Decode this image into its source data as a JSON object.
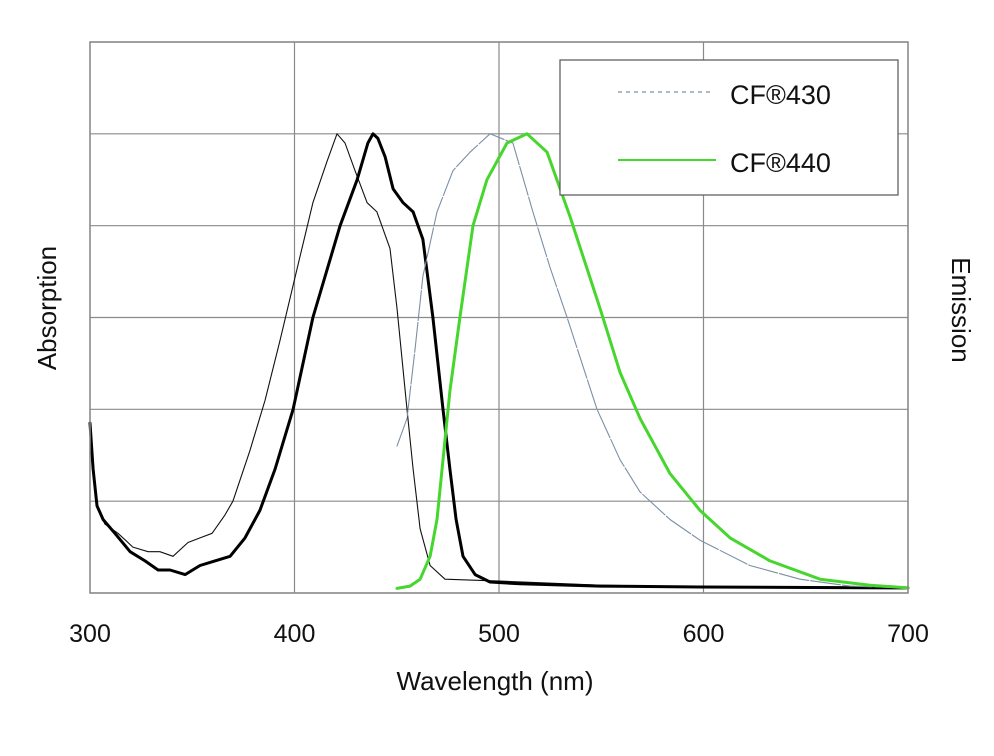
{
  "chart_data": {
    "type": "line",
    "title": "",
    "xlabel": "Wavelength (nm)",
    "ylabel": "Absorption",
    "ylabel_right": "Emission",
    "xlim": [
      300,
      700
    ],
    "ylim": [
      0,
      1.2
    ],
    "xticks": [
      300,
      400,
      500,
      600,
      700
    ],
    "xtick_labels": [
      "300",
      "400",
      "500",
      "600",
      "700"
    ],
    "yticks": [
      0,
      0.2,
      0.4,
      0.6,
      0.8,
      1.0,
      1.2
    ],
    "grid": true,
    "legend": {
      "placement": "top-right",
      "entries": [
        "CF®430",
        "CF®440"
      ]
    },
    "colors": {
      "cf430_absorption": "#111111",
      "cf440_absorption": "#000000",
      "cf430_emission": "#7b8fa5",
      "cf440_emission": "#46d62e",
      "grid": "#8a8a8a"
    },
    "series": [
      {
        "name": "CF®430",
        "kind": "absorption",
        "style": "thin-solid",
        "x": [
          300,
          303.4,
          307.3,
          313.7,
          321.0,
          328.4,
          334.2,
          340.6,
          347.9,
          353.8,
          359.7,
          366.0,
          369.9,
          378.2,
          385.6,
          392.9,
          399.3,
          409.0,
          415.9,
          420.8,
          424.7,
          429.6,
          435.5,
          440.3,
          446.7,
          450.1,
          455.0,
          458.0,
          461.4,
          466.3,
          473.6,
          485.8,
          500.5,
          549.4,
          598.3,
          700
        ],
        "y": [
          0.37,
          0.19,
          0.15,
          0.13,
          0.1,
          0.09,
          0.09,
          0.08,
          0.11,
          0.12,
          0.13,
          0.17,
          0.2,
          0.31,
          0.42,
          0.55,
          0.67,
          0.85,
          0.94,
          1.0,
          0.98,
          0.92,
          0.85,
          0.83,
          0.75,
          0.62,
          0.4,
          0.27,
          0.14,
          0.06,
          0.03,
          0.028,
          0.026,
          0.017,
          0.013,
          0.011
        ]
      },
      {
        "name": "CF®440",
        "kind": "absorption",
        "style": "thick-solid",
        "x": [
          300,
          301.5,
          303.4,
          306.4,
          312.2,
          319.6,
          326.9,
          333.3,
          339.1,
          346.5,
          353.8,
          361.1,
          368.5,
          375.8,
          383.1,
          390.5,
          399.3,
          409.0,
          422.3,
          430.6,
          435.9,
          438.4,
          440.8,
          444.3,
          448.2,
          453.1,
          458.0,
          462.8,
          467.7,
          472.6,
          476.0,
          479.0,
          482.4,
          488.3,
          495.6,
          510.3,
          549.4,
          598.3,
          700
        ],
        "y": [
          0.37,
          0.27,
          0.19,
          0.16,
          0.13,
          0.09,
          0.07,
          0.05,
          0.05,
          0.04,
          0.06,
          0.07,
          0.08,
          0.12,
          0.18,
          0.27,
          0.4,
          0.6,
          0.8,
          0.9,
          0.98,
          1.0,
          0.99,
          0.95,
          0.88,
          0.85,
          0.83,
          0.77,
          0.6,
          0.4,
          0.27,
          0.16,
          0.08,
          0.04,
          0.024,
          0.02,
          0.015,
          0.013,
          0.011
        ]
      },
      {
        "name": "CF®430",
        "kind": "emission",
        "style": "thin-dashed",
        "x": [
          450.1,
          455.0,
          458.9,
          462.8,
          469.7,
          477.5,
          485.8,
          495.6,
          506.8,
          516.6,
          524.9,
          533.3,
          547.9,
          559.2,
          569.0,
          583.6,
          598.3,
          622.7,
          647.2,
          671.6,
          700
        ],
        "y": [
          0.32,
          0.38,
          0.53,
          0.69,
          0.83,
          0.92,
          0.96,
          1.0,
          0.98,
          0.83,
          0.71,
          0.6,
          0.4,
          0.29,
          0.22,
          0.16,
          0.115,
          0.06,
          0.03,
          0.015,
          0.011
        ]
      },
      {
        "name": "CF®440",
        "kind": "emission",
        "style": "thick-solid",
        "x": [
          450.1,
          456.5,
          461.4,
          466.3,
          469.7,
          472.6,
          476.0,
          480.9,
          487.3,
          494.1,
          503.9,
          513.7,
          523.5,
          534.7,
          549.4,
          559.2,
          569.0,
          583.6,
          598.3,
          613.0,
          632.5,
          657.0,
          681.4,
          700
        ],
        "y": [
          0.01,
          0.015,
          0.03,
          0.08,
          0.16,
          0.29,
          0.44,
          0.6,
          0.8,
          0.9,
          0.98,
          1.0,
          0.96,
          0.82,
          0.62,
          0.48,
          0.38,
          0.26,
          0.18,
          0.12,
          0.07,
          0.03,
          0.017,
          0.011
        ]
      }
    ]
  }
}
